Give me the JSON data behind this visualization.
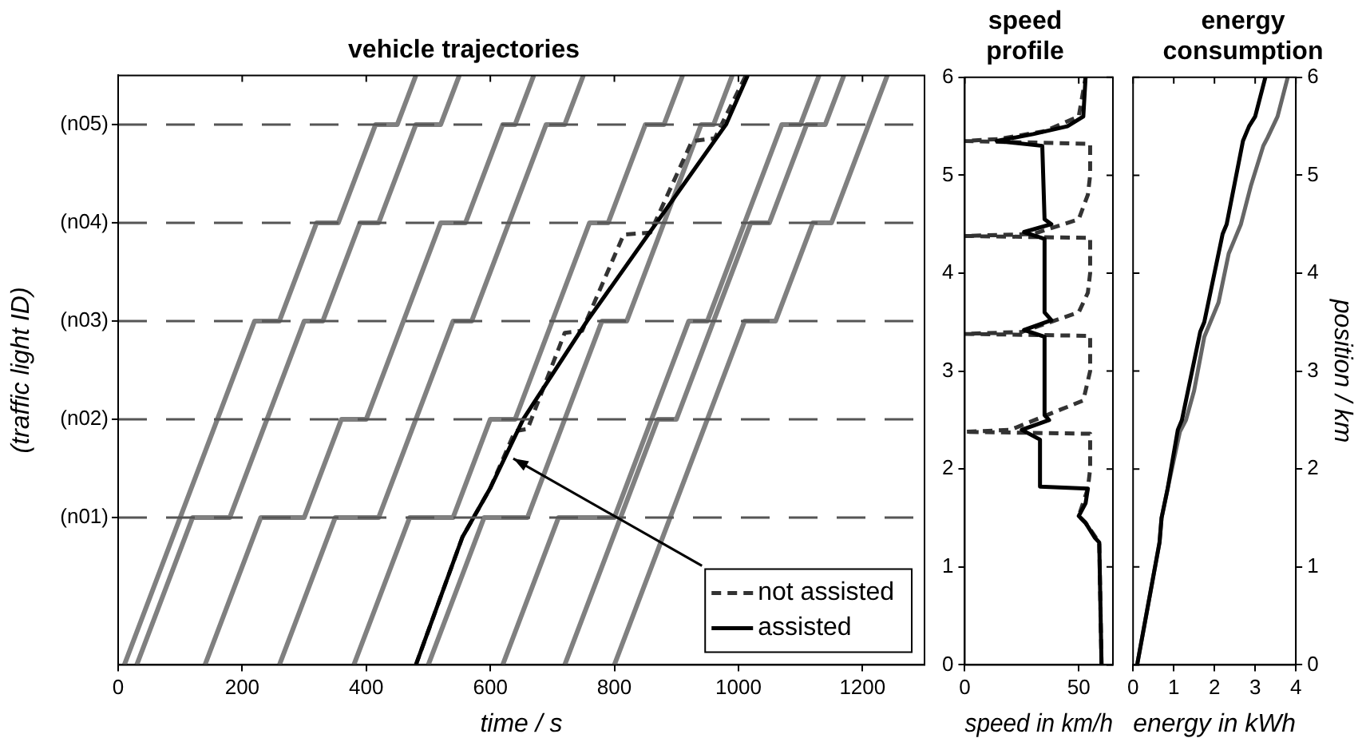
{
  "chart_data": [
    {
      "type": "line",
      "title": "vehicle trajectories",
      "xlabel": "time / s",
      "ylabel": "(traffic light ID)",
      "xlim": [
        0,
        1300
      ],
      "xticks": [
        0,
        200,
        400,
        600,
        800,
        1000,
        1200
      ],
      "ylim": [
        0,
        6
      ],
      "tick_labels": "x",
      "marker": "none",
      "legend": "bottom right",
      "ref_lines": [
        {
          "axis": "y",
          "value": 1.5,
          "label": "(n01)",
          "color": "#555555",
          "line_style": "dashed"
        },
        {
          "axis": "y",
          "value": 2.5,
          "label": "(n02)",
          "color": "#555555",
          "line_style": "dashed"
        },
        {
          "axis": "y",
          "value": 3.5,
          "label": "(n03)",
          "color": "#555555",
          "line_style": "dashed"
        },
        {
          "axis": "y",
          "value": 4.5,
          "label": "(n04)",
          "color": "#555555",
          "line_style": "dashed"
        },
        {
          "axis": "y",
          "value": 5.5,
          "label": "(n05)",
          "color": "#555555",
          "line_style": "dashed"
        }
      ],
      "series": [
        {
          "color": "#808080",
          "x": [
            10,
            220,
            260,
            320,
            355,
            415,
            450,
            480
          ],
          "values": [
            0,
            3.5,
            3.5,
            4.5,
            4.5,
            5.5,
            5.5,
            6
          ]
        },
        {
          "color": "#808080",
          "x": [
            30,
            120,
            180,
            240,
            300,
            330,
            390,
            420,
            480,
            520,
            550
          ],
          "values": [
            0,
            1.5,
            1.5,
            2.5,
            3.5,
            3.5,
            4.5,
            4.5,
            5.5,
            5.5,
            6
          ]
        },
        {
          "color": "#808080",
          "x": [
            140,
            230,
            300,
            360,
            400,
            460,
            520,
            560,
            620,
            640,
            670
          ],
          "values": [
            0,
            1.5,
            1.5,
            2.5,
            2.5,
            3.5,
            4.5,
            4.5,
            5.5,
            5.5,
            6
          ]
        },
        {
          "color": "#808080",
          "x": [
            260,
            350,
            420,
            480,
            540,
            570,
            630,
            690,
            720,
            750
          ],
          "values": [
            0,
            1.5,
            1.5,
            2.5,
            3.5,
            3.5,
            4.5,
            5.5,
            5.5,
            6
          ]
        },
        {
          "color": "#808080",
          "x": [
            380,
            470,
            540,
            600,
            640,
            700,
            760,
            790,
            850,
            880,
            910
          ],
          "values": [
            0,
            1.5,
            1.5,
            2.5,
            2.5,
            3.5,
            4.5,
            4.5,
            5.5,
            5.5,
            6
          ]
        },
        {
          "color": "#808080",
          "x": [
            500,
            590,
            660,
            720,
            780,
            820,
            880,
            940,
            960,
            990
          ],
          "values": [
            0,
            1.5,
            1.5,
            2.5,
            3.5,
            3.5,
            4.5,
            5.5,
            5.5,
            6
          ]
        },
        {
          "color": "#808080",
          "x": [
            620,
            710,
            800,
            860,
            920,
            950,
            1010,
            1070,
            1100,
            1130
          ],
          "values": [
            0,
            1.5,
            1.5,
            2.5,
            3.5,
            3.5,
            4.5,
            5.5,
            5.5,
            6
          ]
        },
        {
          "color": "#808080",
          "x": [
            720,
            810,
            870,
            900,
            960,
            1020,
            1050,
            1110,
            1140,
            1170
          ],
          "values": [
            0,
            1.5,
            2.5,
            2.5,
            3.5,
            4.5,
            4.5,
            5.5,
            5.5,
            6
          ]
        },
        {
          "color": "#808080",
          "x": [
            800,
            890,
            950,
            1010,
            1060,
            1120,
            1150,
            1210,
            1240
          ],
          "values": [
            0,
            1.5,
            2.5,
            3.5,
            3.5,
            4.5,
            4.5,
            5.5,
            6
          ]
        },
        {
          "name": "not assisted",
          "color": "#333333",
          "line_style": "dashed",
          "x": [
            480,
            555,
            600,
            640,
            660,
            720,
            748,
            815,
            858,
            925,
            962,
            1012
          ],
          "values": [
            0,
            1.3,
            1.8,
            2.38,
            2.4,
            3.38,
            3.4,
            4.38,
            4.4,
            5.33,
            5.36,
            6
          ]
        },
        {
          "name": "assisted",
          "color": "#000000",
          "line_style": "solid",
          "x": [
            480,
            555,
            600,
            653,
            756,
            868,
            980,
            1015
          ],
          "values": [
            0,
            1.3,
            1.8,
            2.5,
            3.5,
            4.5,
            5.5,
            6
          ]
        }
      ]
    },
    {
      "type": "line",
      "title": "speed profile",
      "xlabel": "speed in km/h",
      "xlim": [
        0,
        65
      ],
      "xticks": [
        0,
        50
      ],
      "ylim": [
        0,
        6
      ],
      "yticks": [
        0,
        1,
        2,
        3,
        4,
        5,
        6
      ],
      "marker": "none",
      "series": [
        {
          "color": "#333333",
          "line_style": "dashed",
          "x": [
            60,
            59,
            53,
            50,
            54,
            55,
            55,
            0,
            20,
            52,
            54,
            55,
            55,
            0,
            25,
            50,
            54,
            55,
            55,
            0,
            30,
            50,
            54,
            55,
            55,
            0,
            15,
            35,
            50,
            53
          ],
          "values": [
            0,
            1.25,
            1.45,
            1.52,
            1.8,
            2.0,
            2.36,
            2.38,
            2.4,
            2.7,
            2.9,
            3.0,
            3.36,
            3.38,
            3.4,
            3.6,
            3.8,
            4.0,
            4.36,
            4.38,
            4.4,
            4.55,
            4.8,
            5.0,
            5.32,
            5.35,
            5.37,
            5.45,
            5.6,
            6
          ]
        },
        {
          "color": "#000000",
          "line_style": "solid",
          "x": [
            60,
            59,
            57,
            53,
            50,
            53,
            54,
            33,
            33,
            25,
            37,
            35,
            35,
            26,
            38,
            35,
            35,
            26,
            38,
            35,
            34,
            14,
            30,
            45,
            52,
            53
          ],
          "values": [
            0,
            1.25,
            1.3,
            1.45,
            1.52,
            1.65,
            1.8,
            1.82,
            2.3,
            2.4,
            2.5,
            2.55,
            3.35,
            3.42,
            3.52,
            3.6,
            4.35,
            4.42,
            4.5,
            4.55,
            5.3,
            5.35,
            5.42,
            5.5,
            5.6,
            6
          ]
        }
      ]
    },
    {
      "type": "line",
      "title": "energy consumption",
      "xlabel": "energy in kWh",
      "y2label": "position / km",
      "xlim": [
        0,
        4
      ],
      "xticks": [
        0,
        1,
        2,
        3,
        4
      ],
      "y2lim": [
        0,
        6
      ],
      "y2ticks": [
        0,
        1,
        2,
        3,
        4,
        5,
        6
      ],
      "marker": "none",
      "series": [
        {
          "color": "#666666",
          "axis": "y2",
          "x": [
            0.1,
            0.65,
            0.7,
            0.85,
            1.15,
            1.3,
            1.5,
            1.75,
            1.85,
            2.1,
            2.35,
            2.5,
            2.65,
            2.9,
            3.2,
            3.3,
            3.55,
            3.8
          ],
          "values": [
            0,
            1.25,
            1.5,
            1.8,
            2.38,
            2.5,
            2.8,
            3.35,
            3.45,
            3.7,
            4.2,
            4.35,
            4.5,
            4.9,
            5.3,
            5.38,
            5.6,
            6
          ]
        },
        {
          "color": "#000000",
          "axis": "y2",
          "x": [
            0.1,
            0.65,
            0.7,
            0.85,
            1.1,
            1.2,
            1.65,
            1.75,
            2.2,
            2.3,
            2.7,
            2.85,
            3.0,
            3.25
          ],
          "values": [
            0,
            1.25,
            1.5,
            1.8,
            2.4,
            2.5,
            3.4,
            3.5,
            4.4,
            4.5,
            5.35,
            5.5,
            5.6,
            6
          ]
        }
      ]
    }
  ]
}
